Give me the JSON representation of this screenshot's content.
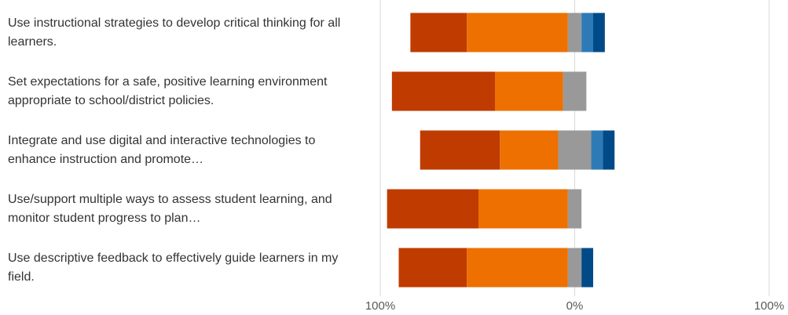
{
  "chart_data": {
    "type": "diverging_bar",
    "categories": [
      "Use instructional strategies to develop critical thinking for all learners.",
      "Set expectations for a safe, positive learning environment appropriate to school/district policies.",
      "Integrate and use digital and interactive technologies to enhance instruction and promote…",
      "Use/support multiple ways to assess student learning, and monitor student progress to plan…",
      "Use descriptive feedback to effectively guide learners in my field."
    ],
    "series": [
      {
        "color": "#bf3b00",
        "values": [
          29,
          53,
          41,
          47,
          35
        ]
      },
      {
        "color": "#ed7000",
        "values": [
          52,
          35,
          30,
          46,
          52
        ]
      },
      {
        "color": "#999999",
        "values": [
          7,
          12,
          17,
          7,
          7
        ]
      },
      {
        "color": "#2e7ab6",
        "values": [
          6,
          0,
          6,
          0,
          0
        ]
      },
      {
        "color": "#004b87",
        "values": [
          6,
          0,
          6,
          0,
          6
        ]
      }
    ],
    "xlim": [
      -100,
      100
    ],
    "xticks": [
      {
        "value": -100,
        "label": "100%"
      },
      {
        "value": 0,
        "label": "0%"
      },
      {
        "value": 100,
        "label": "100%"
      }
    ],
    "grid": true
  }
}
